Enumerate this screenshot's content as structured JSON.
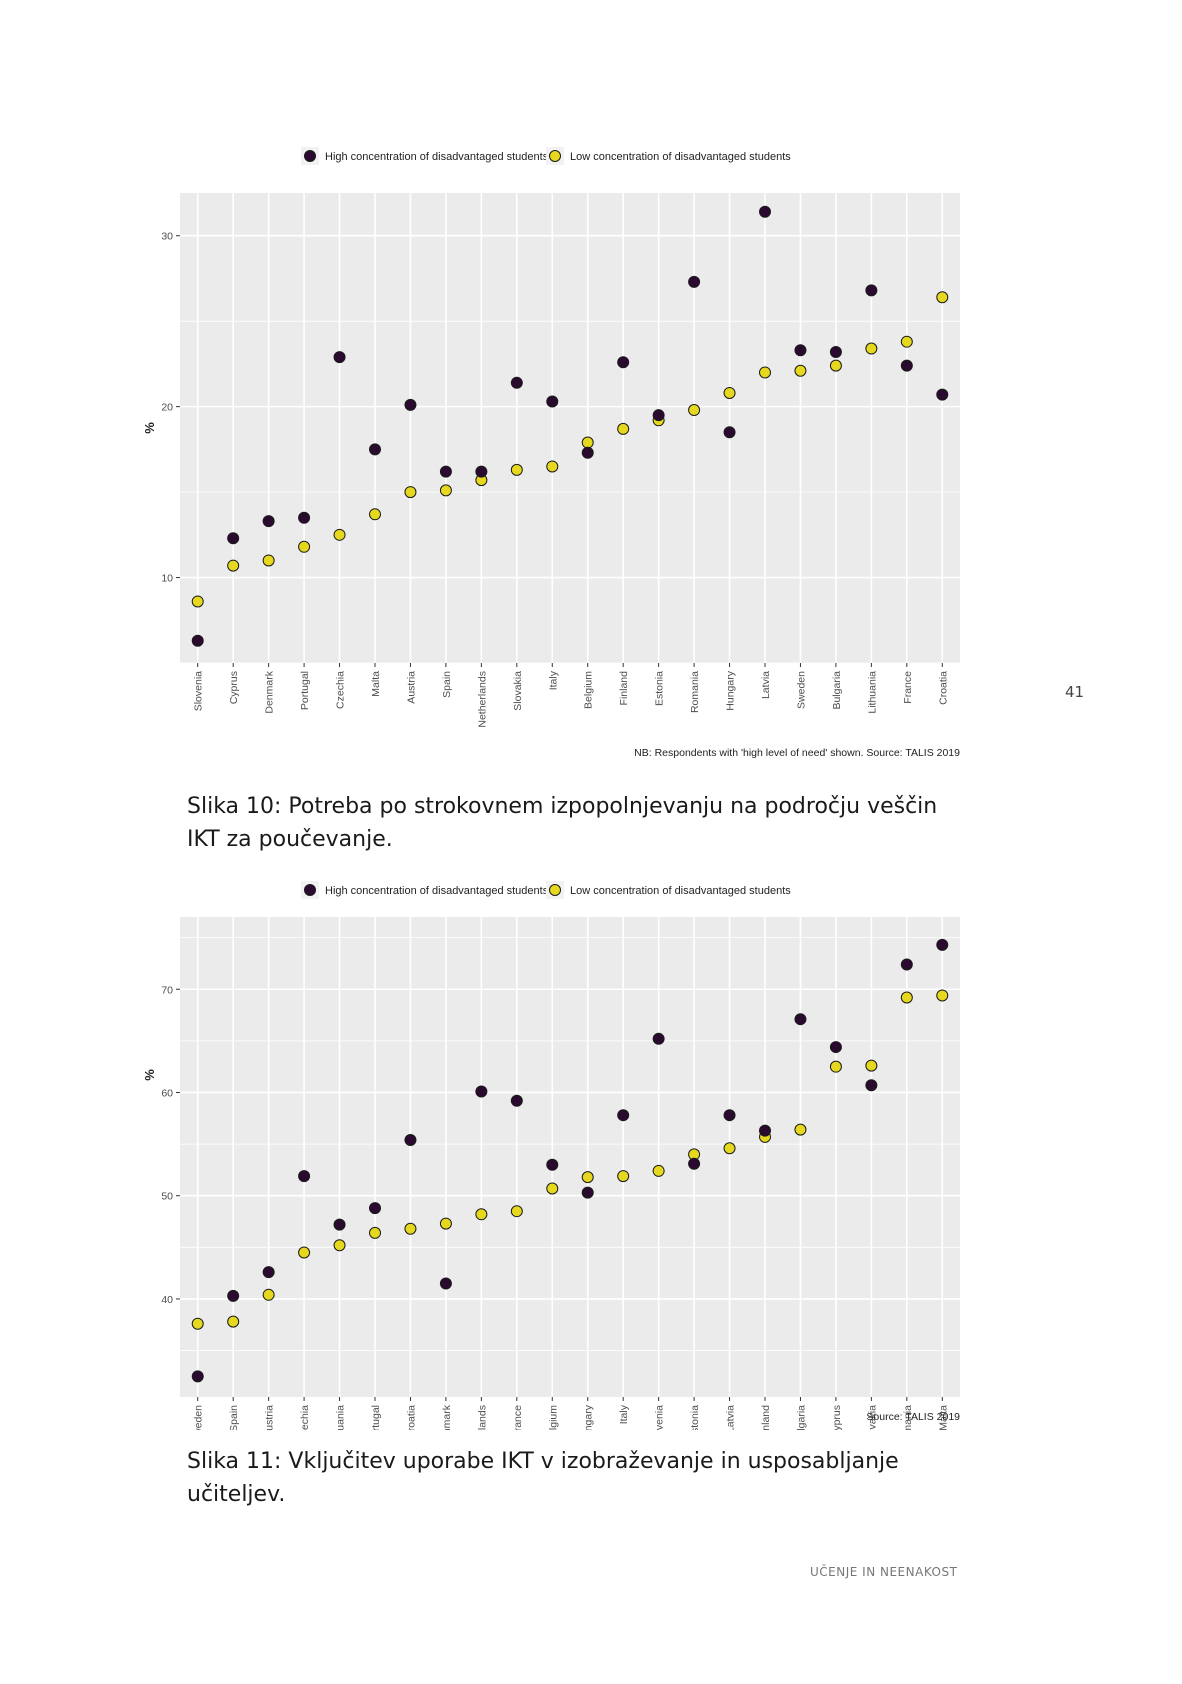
{
  "page": {
    "page_number": "41",
    "footer": "UČENJE IN NEENAKOST"
  },
  "figures": [
    {
      "caption": "Slika 10: Potreba po strokovnem izpopolnjevanju na področju veščin IKT za poučevanje.",
      "note": "NB: Respondents with 'high level of need' shown. Source: TALIS 2019"
    },
    {
      "caption": "Slika 11: Vključitev uporabe IKT v izobraževanje in usposabljanje učiteljev.",
      "note": "Source: TALIS 2019"
    }
  ],
  "colors": {
    "high": "#2a0a2e",
    "low": "#e6d81e",
    "panel": "#ebebeb",
    "grid": "#ffffff"
  },
  "chart_data": [
    {
      "type": "scatter",
      "title": "",
      "xlabel": "",
      "ylabel": "%",
      "ylim": [
        5,
        32.5
      ],
      "yticks": [
        10,
        20,
        30
      ],
      "grid": true,
      "legend_position": "top",
      "categories": [
        "Slovenia",
        "Cyprus",
        "Denmark",
        "Portugal",
        "Czechia",
        "Malta",
        "Austria",
        "Spain",
        "Netherlands",
        "Slovakia",
        "Italy",
        "Belgium",
        "Finland",
        "Estonia",
        "Romania",
        "Hungary",
        "Latvia",
        "Sweden",
        "Bulgaria",
        "Lithuania",
        "France",
        "Croatia"
      ],
      "series": [
        {
          "name": "High concentration of disadvantaged students",
          "color_key": "high",
          "values": [
            6.3,
            12.3,
            13.3,
            13.5,
            22.9,
            17.5,
            20.1,
            16.2,
            16.2,
            21.4,
            20.3,
            17.3,
            22.6,
            19.5,
            27.3,
            18.5,
            31.4,
            23.3,
            23.2,
            26.8,
            22.4,
            20.7
          ]
        },
        {
          "name": "Low concentration of disadvantaged students",
          "color_key": "low",
          "values": [
            8.6,
            10.7,
            11.0,
            11.8,
            12.5,
            13.7,
            15.0,
            15.1,
            15.7,
            16.3,
            16.5,
            17.9,
            18.7,
            19.2,
            19.8,
            20.8,
            22.0,
            22.1,
            22.4,
            23.4,
            23.8,
            26.4
          ]
        }
      ]
    },
    {
      "type": "scatter",
      "title": "",
      "xlabel": "",
      "ylabel": "%",
      "ylim": [
        30.5,
        77
      ],
      "yticks": [
        40,
        50,
        60,
        70
      ],
      "grid": true,
      "legend_position": "top",
      "categories": [
        "Sweden",
        "Spain",
        "Austria",
        "Czechia",
        "Lithuania",
        "Portugal",
        "Croatia",
        "Denmark",
        "Netherlands",
        "France",
        "Belgium",
        "Hungary",
        "Italy",
        "Slovenia",
        "Estonia",
        "Latvia",
        "Finland",
        "Bulgaria",
        "Cyprus",
        "Slovakia",
        "Romania",
        "Malta"
      ],
      "series": [
        {
          "name": "High concentration of disadvantaged students",
          "color_key": "high",
          "values": [
            32.5,
            40.3,
            42.6,
            51.9,
            47.2,
            48.8,
            55.4,
            41.5,
            60.1,
            59.2,
            53.0,
            50.3,
            57.8,
            65.2,
            53.1,
            57.8,
            56.3,
            67.1,
            64.4,
            60.7,
            72.4,
            74.3
          ]
        },
        {
          "name": "Low concentration of disadvantaged students",
          "color_key": "low",
          "values": [
            37.6,
            37.8,
            40.4,
            44.5,
            45.2,
            46.4,
            46.8,
            47.3,
            48.2,
            48.5,
            50.7,
            51.8,
            51.9,
            52.4,
            54.0,
            54.6,
            55.7,
            56.4,
            62.5,
            62.6,
            69.2,
            69.4
          ]
        }
      ]
    }
  ]
}
